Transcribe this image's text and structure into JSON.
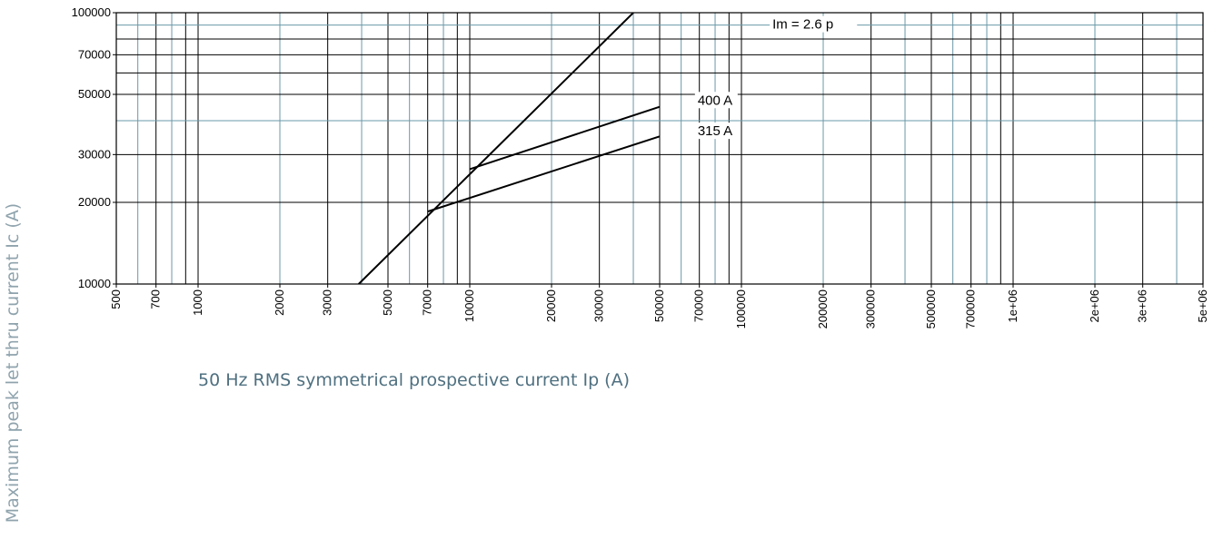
{
  "chart_data": {
    "type": "line",
    "title": "",
    "xlabel": "50 Hz RMS symmetrical prospective current Ip (A)",
    "ylabel": "Maximum peak let thru current Ic (A)",
    "xscale": "log",
    "yscale": "log",
    "xlim": [
      500,
      5000000
    ],
    "ylim": [
      10000,
      100000
    ],
    "grid": true,
    "x_ticks": [
      "500",
      "700",
      "1000",
      "2000",
      "3000",
      "5000",
      "7000",
      "10000",
      "20000",
      "30000",
      "50000",
      "70000",
      "100000",
      "200000",
      "300000",
      "500000",
      "700000",
      "1e+06",
      "2e+06",
      "3e+06",
      "5e+06"
    ],
    "y_ticks": [
      "10000",
      "20000",
      "30000",
      "50000",
      "70000",
      "100000"
    ],
    "series": [
      {
        "name": "Im = 2.6 Ip",
        "x": [
          3900,
          40000
        ],
        "y": [
          10000,
          100000
        ]
      },
      {
        "name": "400 A",
        "x": [
          10000,
          50000
        ],
        "y": [
          26500,
          45000
        ]
      },
      {
        "name": "315 A",
        "x": [
          7000,
          50000
        ],
        "y": [
          18500,
          35000
        ]
      }
    ],
    "annotations": [
      {
        "text": "Im = 2.6  p",
        "x": 130000,
        "y": 88000
      },
      {
        "text": "400 A",
        "x": 69000,
        "y": 46200
      },
      {
        "text": "315 A",
        "x": 69000,
        "y": 35600
      }
    ]
  }
}
